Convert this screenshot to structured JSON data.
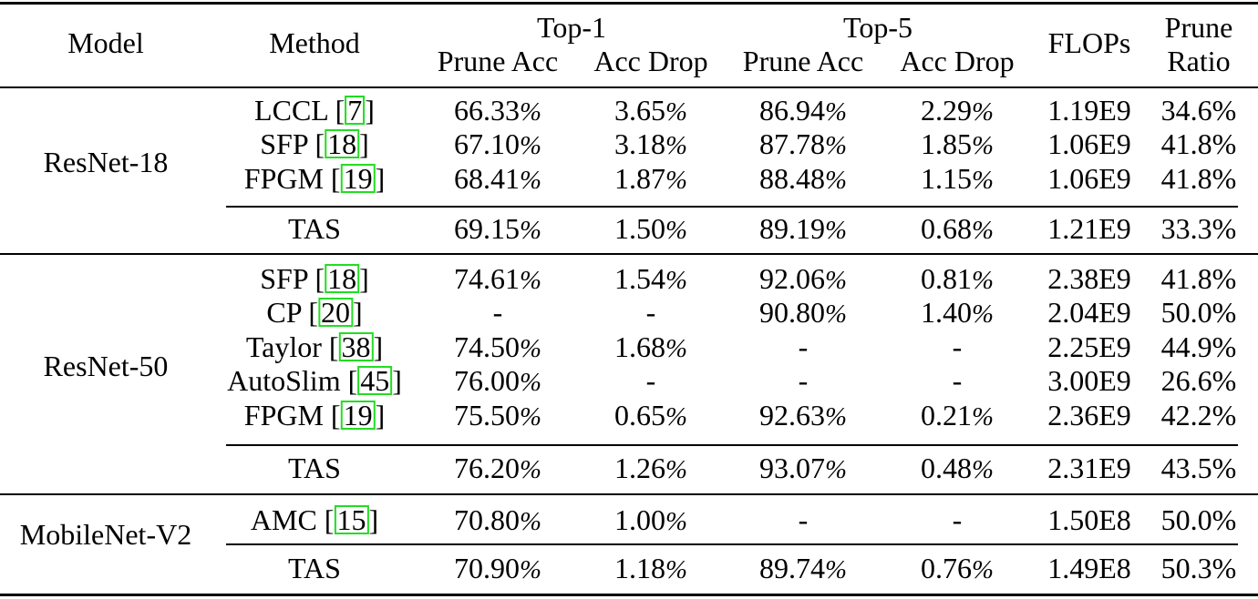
{
  "header": {
    "model": "Model",
    "method": "Method",
    "top1": "Top-1",
    "top5": "Top-5",
    "prune_acc": "Prune Acc",
    "acc_drop": "Acc Drop",
    "flops": "FLOPs",
    "prune": "Prune",
    "ratio": "Ratio"
  },
  "groups": [
    {
      "model": "ResNet-18",
      "rows": [
        {
          "method": "LCCL",
          "cite": "7",
          "top1_acc": "66.33",
          "top1_drop": "3.65",
          "top5_acc": "86.94",
          "top5_drop": "2.29",
          "flops": "1.19E9",
          "ratio": "34.6%"
        },
        {
          "method": "SFP",
          "cite": "18",
          "top1_acc": "67.10",
          "top1_drop": "3.18",
          "top5_acc": "87.78",
          "top5_drop": "1.85",
          "flops": "1.06E9",
          "ratio": "41.8%"
        },
        {
          "method": "FPGM",
          "cite": "19",
          "top1_acc": "68.41",
          "top1_drop": "1.87",
          "top5_acc": "88.48",
          "top5_drop": "1.15",
          "flops": "1.06E9",
          "ratio": "41.8%"
        }
      ],
      "ours": {
        "method": "TAS",
        "top1_acc": "69.15",
        "top1_drop": "1.50",
        "top5_acc": "89.19",
        "top5_drop": "0.68",
        "flops": "1.21E9",
        "ratio": "33.3%"
      }
    },
    {
      "model": "ResNet-50",
      "rows": [
        {
          "method": "SFP",
          "cite": "18",
          "top1_acc": "74.61",
          "top1_drop": "1.54",
          "top5_acc": "92.06",
          "top5_drop": "0.81",
          "flops": "2.38E9",
          "ratio": "41.8%"
        },
        {
          "method": "CP",
          "cite": "20",
          "top1_acc": "-",
          "top1_drop": "-",
          "top5_acc": "90.80",
          "top5_drop": "1.40",
          "flops": "2.04E9",
          "ratio": "50.0%"
        },
        {
          "method": "Taylor",
          "cite": "38",
          "top1_acc": "74.50",
          "top1_drop": "1.68",
          "top5_acc": "-",
          "top5_drop": "-",
          "flops": "2.25E9",
          "ratio": "44.9%"
        },
        {
          "method": "AutoSlim",
          "cite": "45",
          "top1_acc": "76.00",
          "top1_drop": "-",
          "top5_acc": "-",
          "top5_drop": "-",
          "flops": "3.00E9",
          "ratio": "26.6%"
        },
        {
          "method": "FPGM",
          "cite": "19",
          "top1_acc": "75.50",
          "top1_drop": "0.65",
          "top5_acc": "92.63",
          "top5_drop": "0.21",
          "flops": "2.36E9",
          "ratio": "42.2%"
        }
      ],
      "ours": {
        "method": "TAS",
        "top1_acc": "76.20",
        "top1_drop": "1.26",
        "top5_acc": "93.07",
        "top5_drop": "0.48",
        "flops": "2.31E9",
        "ratio": "43.5%"
      }
    },
    {
      "model": "MobileNet-V2",
      "rows": [
        {
          "method": "AMC",
          "cite": "15",
          "top1_acc": "70.80",
          "top1_drop": "1.00",
          "top5_acc": "-",
          "top5_drop": "-",
          "flops": "1.50E8",
          "ratio": "50.0%"
        }
      ],
      "ours": {
        "method": "TAS",
        "top1_acc": "70.90",
        "top1_drop": "1.18",
        "top5_acc": "89.74",
        "top5_drop": "0.76",
        "flops": "1.49E8",
        "ratio": "50.3%"
      }
    }
  ]
}
